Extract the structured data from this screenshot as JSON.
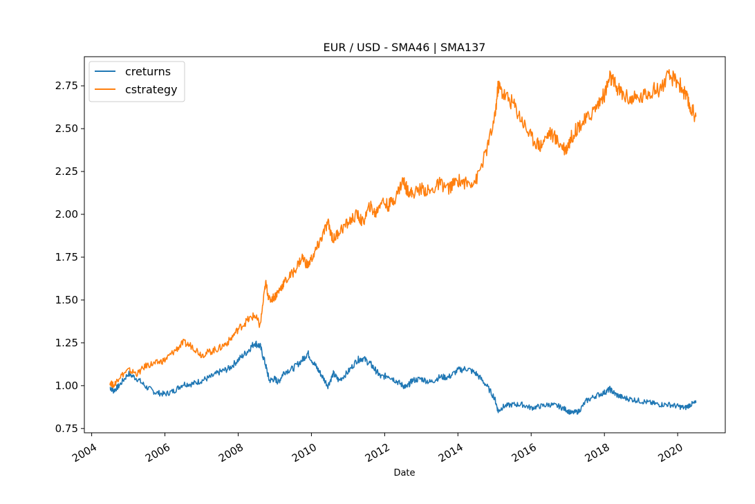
{
  "chart_data": {
    "type": "line",
    "title": "EUR / USD - SMA46 | SMA137",
    "xlabel": "Date",
    "ylabel": "",
    "xlim": [
      2003.8,
      2021.3
    ],
    "ylim": [
      0.725,
      2.92
    ],
    "x_ticks": [
      2004,
      2006,
      2008,
      2010,
      2012,
      2014,
      2016,
      2018,
      2020
    ],
    "x_tick_labels": [
      "2004",
      "2006",
      "2008",
      "2010",
      "2012",
      "2014",
      "2016",
      "2018",
      "2020"
    ],
    "y_ticks": [
      0.75,
      1.0,
      1.25,
      1.5,
      1.75,
      2.0,
      2.25,
      2.5,
      2.75
    ],
    "y_tick_labels": [
      "0.75",
      "1.00",
      "1.25",
      "1.50",
      "1.75",
      "2.00",
      "2.25",
      "2.50",
      "2.75"
    ],
    "grid": false,
    "legend_position": "top-left",
    "series": [
      {
        "name": "creturns",
        "color": "#1f77b4",
        "x": [
          2004.5,
          2004.6,
          2004.75,
          2005.0,
          2005.25,
          2005.5,
          2005.75,
          2006.0,
          2006.25,
          2006.5,
          2006.75,
          2007.0,
          2007.25,
          2007.5,
          2007.75,
          2008.0,
          2008.25,
          2008.45,
          2008.6,
          2008.75,
          2008.85,
          2009.0,
          2009.1,
          2009.25,
          2009.5,
          2009.75,
          2009.9,
          2010.1,
          2010.25,
          2010.45,
          2010.6,
          2010.75,
          2011.0,
          2011.25,
          2011.4,
          2011.6,
          2011.75,
          2011.9,
          2012.1,
          2012.3,
          2012.5,
          2012.6,
          2012.75,
          2013.0,
          2013.25,
          2013.5,
          2013.75,
          2014.0,
          2014.25,
          2014.5,
          2014.75,
          2015.0,
          2015.1,
          2015.25,
          2015.5,
          2015.75,
          2016.0,
          2016.25,
          2016.5,
          2016.75,
          2016.95,
          2017.1,
          2017.3,
          2017.5,
          2017.75,
          2018.0,
          2018.15,
          2018.3,
          2018.5,
          2018.75,
          2019.0,
          2019.25,
          2019.5,
          2019.75,
          2020.0,
          2020.2,
          2020.35,
          2020.5
        ],
        "values": [
          0.99,
          0.97,
          1.0,
          1.07,
          1.04,
          0.99,
          0.96,
          0.95,
          0.97,
          1.01,
          1.01,
          1.03,
          1.05,
          1.08,
          1.1,
          1.15,
          1.2,
          1.25,
          1.23,
          1.12,
          1.03,
          1.04,
          1.02,
          1.08,
          1.1,
          1.15,
          1.19,
          1.12,
          1.07,
          1.0,
          1.07,
          1.03,
          1.08,
          1.15,
          1.16,
          1.13,
          1.09,
          1.05,
          1.06,
          1.03,
          1.0,
          0.99,
          1.03,
          1.04,
          1.02,
          1.05,
          1.05,
          1.09,
          1.1,
          1.07,
          1.01,
          0.93,
          0.85,
          0.88,
          0.89,
          0.89,
          0.87,
          0.88,
          0.89,
          0.88,
          0.86,
          0.84,
          0.85,
          0.91,
          0.94,
          0.96,
          0.98,
          0.95,
          0.93,
          0.92,
          0.91,
          0.9,
          0.89,
          0.89,
          0.88,
          0.87,
          0.89,
          0.9
        ]
      },
      {
        "name": "cstrategy",
        "color": "#ff7f0e",
        "x": [
          2004.5,
          2004.6,
          2004.75,
          2005.0,
          2005.25,
          2005.5,
          2005.75,
          2006.0,
          2006.25,
          2006.5,
          2006.75,
          2007.0,
          2007.25,
          2007.5,
          2007.75,
          2008.0,
          2008.25,
          2008.45,
          2008.6,
          2008.75,
          2008.85,
          2009.0,
          2009.1,
          2009.25,
          2009.5,
          2009.75,
          2009.9,
          2010.1,
          2010.25,
          2010.45,
          2010.6,
          2010.75,
          2011.0,
          2011.25,
          2011.4,
          2011.6,
          2011.75,
          2011.9,
          2012.1,
          2012.3,
          2012.5,
          2012.6,
          2012.75,
          2013.0,
          2013.25,
          2013.5,
          2013.75,
          2014.0,
          2014.25,
          2014.5,
          2014.75,
          2015.0,
          2015.1,
          2015.25,
          2015.5,
          2015.75,
          2016.0,
          2016.25,
          2016.5,
          2016.75,
          2016.95,
          2017.1,
          2017.3,
          2017.5,
          2017.75,
          2018.0,
          2018.15,
          2018.3,
          2018.5,
          2018.75,
          2019.0,
          2019.25,
          2019.5,
          2019.75,
          2020.0,
          2020.2,
          2020.35,
          2020.5
        ],
        "values": [
          1.02,
          1.0,
          1.05,
          1.09,
          1.07,
          1.12,
          1.13,
          1.15,
          1.2,
          1.25,
          1.23,
          1.18,
          1.2,
          1.22,
          1.26,
          1.33,
          1.38,
          1.41,
          1.35,
          1.6,
          1.5,
          1.52,
          1.55,
          1.6,
          1.66,
          1.75,
          1.7,
          1.78,
          1.85,
          1.95,
          1.85,
          1.9,
          1.95,
          2.0,
          1.95,
          2.05,
          2.0,
          2.08,
          2.05,
          2.1,
          2.2,
          2.15,
          2.12,
          2.15,
          2.13,
          2.18,
          2.15,
          2.2,
          2.18,
          2.2,
          2.35,
          2.55,
          2.75,
          2.7,
          2.65,
          2.55,
          2.45,
          2.4,
          2.48,
          2.42,
          2.38,
          2.45,
          2.52,
          2.55,
          2.62,
          2.7,
          2.8,
          2.75,
          2.7,
          2.67,
          2.68,
          2.72,
          2.73,
          2.8,
          2.78,
          2.7,
          2.62,
          2.57
        ]
      }
    ]
  }
}
